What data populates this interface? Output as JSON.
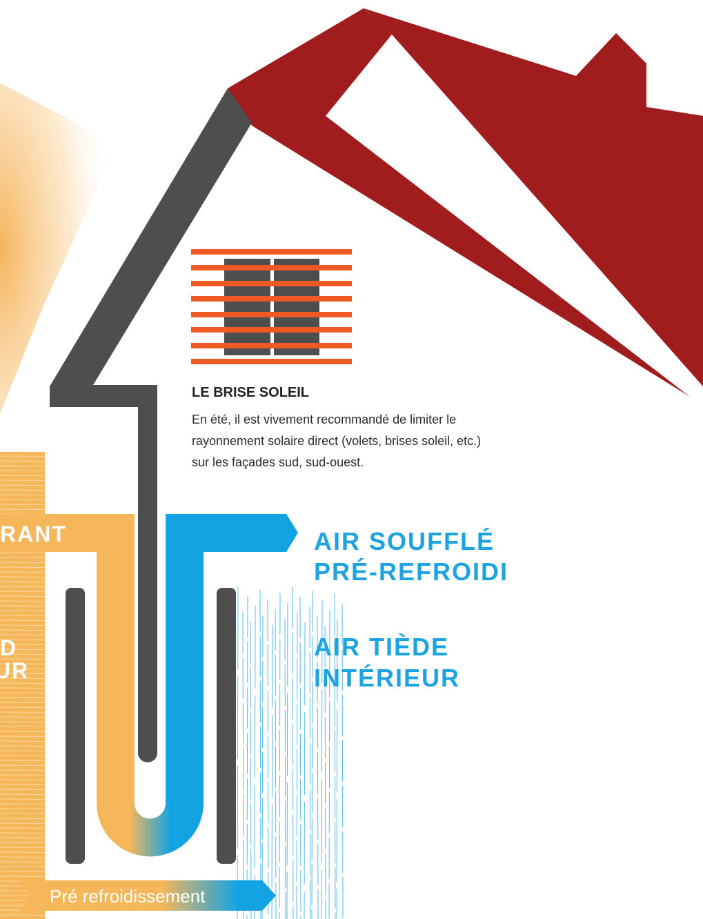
{
  "cut_labels": {
    "top": "RANT",
    "middle_1": "D",
    "middle_2": "UR"
  },
  "brise_soleil": {
    "title": "LE BRISE SOLEIL",
    "text": [
      "En été, il est vivement recommandé de limiter le",
      "rayonnement solaire direct (volets, brises soleil, etc.)",
      "sur les façades sud, sud-ouest."
    ]
  },
  "air_souffle": [
    "AIR SOUFFLÉ",
    "PRÉ-REFROIDI"
  ],
  "air_tiede": [
    "AIR TIÈDE",
    "INTÉRIEUR"
  ],
  "bottom_label": "Pré refroidissement"
}
